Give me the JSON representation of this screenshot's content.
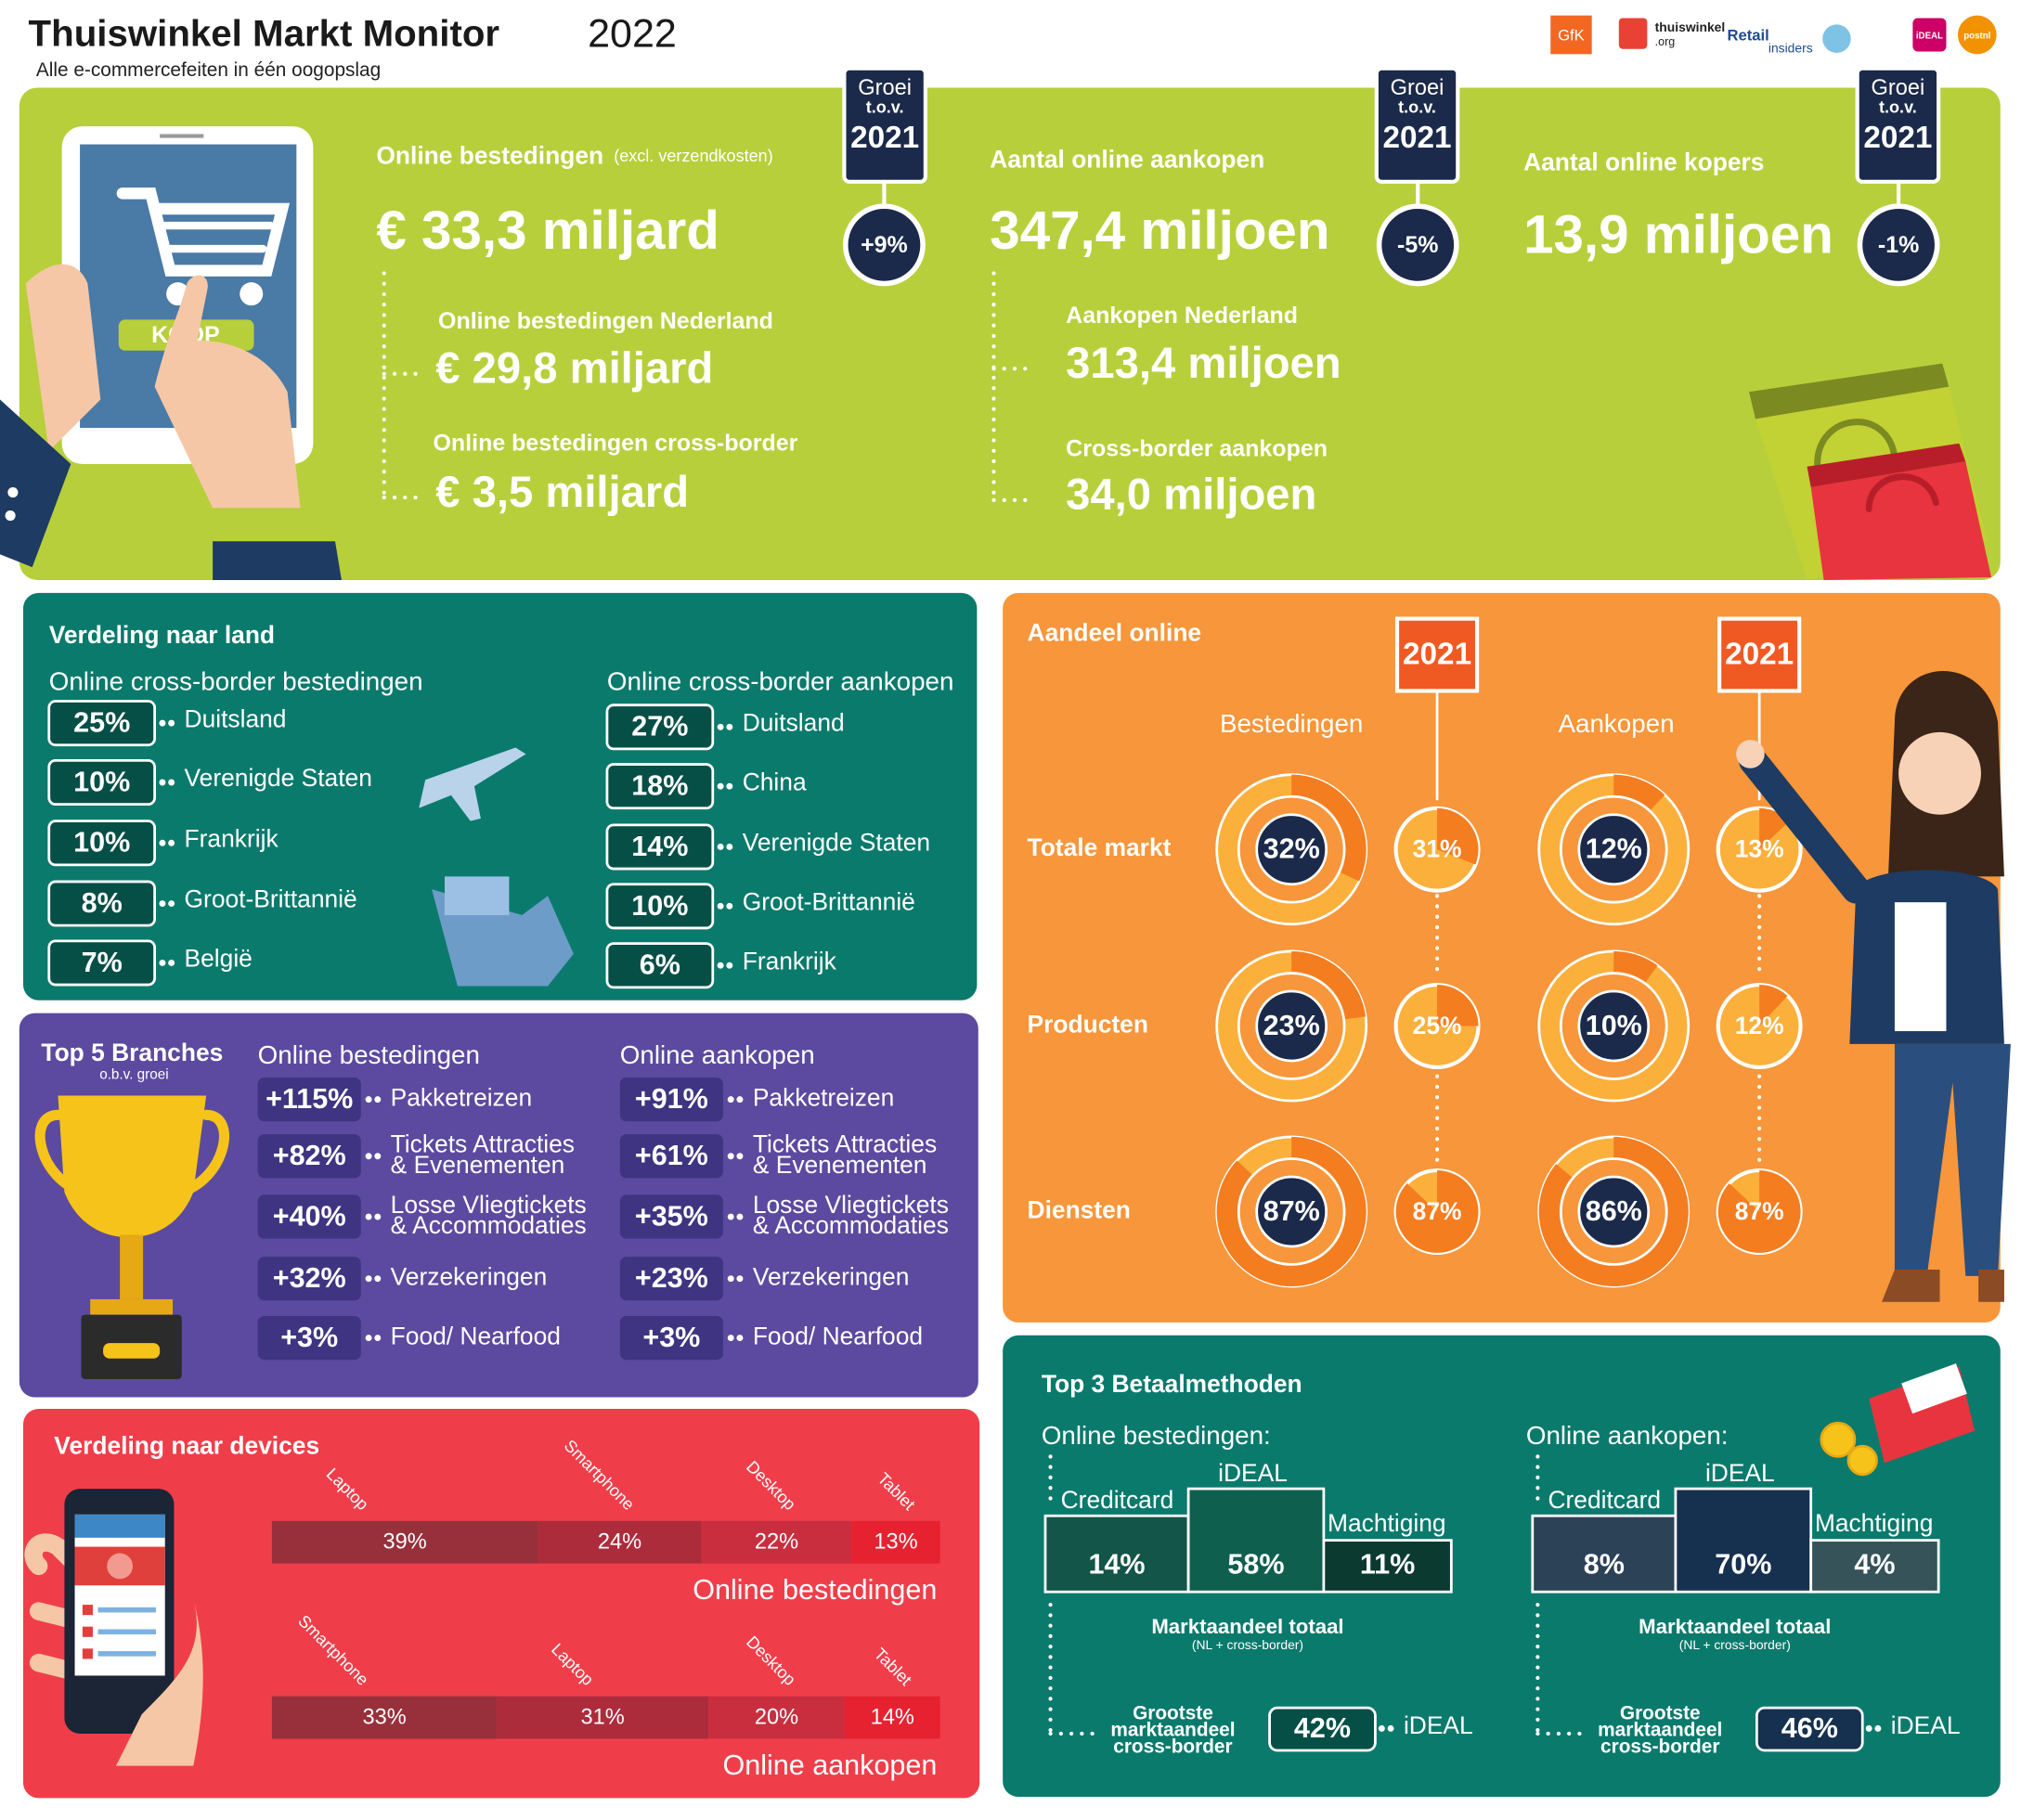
{
  "header": {
    "title": "Thuiswinkel Markt Monitor",
    "year": "2022",
    "subtitle": "Alle e-commercefeiten in één oogopslag",
    "logos": [
      "GfK",
      "thuiswinkel",
      ".org",
      "Retail",
      "insiders",
      "iDEAL",
      "postnl"
    ]
  },
  "overview": {
    "button": "KOOP",
    "growth_title": "Groei",
    "growth_sub": "t.o.v.",
    "growth_year": "2021",
    "kpis": [
      {
        "label": "Online bestedingen",
        "note": "(excl. verzendkosten)",
        "value": "€ 33,3 miljard",
        "growth": "+9%",
        "breakdown": [
          {
            "label": "Online bestedingen Nederland",
            "value": "€ 29,8 miljard"
          },
          {
            "label": "Online bestedingen cross-border",
            "value": "€ 3,5 miljard"
          }
        ]
      },
      {
        "label": "Aantal online aankopen",
        "value": "347,4 miljoen",
        "growth": "-5%",
        "breakdown": [
          {
            "label": "Aankopen Nederland",
            "value": "313,4 miljoen"
          },
          {
            "label": "Cross-border aankopen",
            "value": "34,0 miljoen"
          }
        ]
      },
      {
        "label": "Aantal online kopers",
        "value": "13,9 miljoen",
        "growth": "-1%"
      }
    ]
  },
  "countries": {
    "title": "Verdeling naar land",
    "columns": [
      {
        "heading": "Online cross-border bestedingen",
        "rows": [
          {
            "share": "25%",
            "country": "Duitsland"
          },
          {
            "share": "10%",
            "country": "Verenigde Staten"
          },
          {
            "share": "10%",
            "country": "Frankrijk"
          },
          {
            "share": "8%",
            "country": "Groot-Brittannië"
          },
          {
            "share": "7%",
            "country": "België"
          }
        ]
      },
      {
        "heading": "Online cross-border aankopen",
        "rows": [
          {
            "share": "27%",
            "country": "Duitsland"
          },
          {
            "share": "18%",
            "country": "China"
          },
          {
            "share": "14%",
            "country": "Verenigde Staten"
          },
          {
            "share": "10%",
            "country": "Groot-Brittannië"
          },
          {
            "share": "6%",
            "country": "Frankrijk"
          }
        ]
      }
    ]
  },
  "branches": {
    "title": "Top 5 Branches",
    "subtitle": "o.b.v. groei",
    "columns": [
      {
        "heading": "Online bestedingen",
        "rows": [
          {
            "growth": "+115%",
            "branch": [
              "Pakketreizen"
            ]
          },
          {
            "growth": "+82%",
            "branch": [
              "Tickets Attracties",
              "& Evenementen"
            ]
          },
          {
            "growth": "+40%",
            "branch": [
              "Losse Vliegtickets",
              "& Accommodaties"
            ]
          },
          {
            "growth": "+32%",
            "branch": [
              "Verzekeringen"
            ]
          },
          {
            "growth": "+3%",
            "branch": [
              "Food/ Nearfood"
            ]
          }
        ]
      },
      {
        "heading": "Online aankopen",
        "rows": [
          {
            "growth": "+91%",
            "branch": [
              "Pakketreizen"
            ]
          },
          {
            "growth": "+61%",
            "branch": [
              "Tickets Attracties",
              "& Evenementen"
            ]
          },
          {
            "growth": "+35%",
            "branch": [
              "Losse Vliegtickets",
              "& Accommodaties"
            ]
          },
          {
            "growth": "+23%",
            "branch": [
              "Verzekeringen"
            ]
          },
          {
            "growth": "+3%",
            "branch": [
              "Food/ Nearfood"
            ]
          }
        ]
      }
    ]
  },
  "devices": {
    "title": "Verdeling naar devices",
    "bars": [
      {
        "caption": "Online bestedingen",
        "segments": [
          {
            "device": "Laptop",
            "value": 39,
            "label": "39%"
          },
          {
            "device": "Smartphone",
            "value": 24,
            "label": "24%"
          },
          {
            "device": "Desktop",
            "value": 22,
            "label": "22%"
          },
          {
            "device": "Tablet",
            "value": 13,
            "label": "13%"
          }
        ]
      },
      {
        "caption": "Online aankopen",
        "segments": [
          {
            "device": "Smartphone",
            "value": 33,
            "label": "33%"
          },
          {
            "device": "Laptop",
            "value": 31,
            "label": "31%"
          },
          {
            "device": "Desktop",
            "value": 20,
            "label": "20%"
          },
          {
            "device": "Tablet",
            "value": 14,
            "label": "14%"
          }
        ]
      }
    ]
  },
  "share_online": {
    "title": "Aandeel online",
    "year": "2021",
    "columns": [
      "Bestedingen",
      "Aankopen"
    ],
    "rows": [
      {
        "label": "Totale markt",
        "cells": [
          {
            "value": 32,
            "label": "32%"
          },
          {
            "value": 31,
            "label": "31%"
          },
          {
            "value": 12,
            "label": "12%"
          },
          {
            "value": 13,
            "label": "13%"
          }
        ]
      },
      {
        "label": "Producten",
        "cells": [
          {
            "value": 23,
            "label": "23%"
          },
          {
            "value": 25,
            "label": "25%"
          },
          {
            "value": 10,
            "label": "10%"
          },
          {
            "value": 12,
            "label": "12%"
          }
        ]
      },
      {
        "label": "Diensten",
        "cells": [
          {
            "value": 87,
            "label": "87%"
          },
          {
            "value": 87,
            "label": "87%"
          },
          {
            "value": 86,
            "label": "86%"
          },
          {
            "value": 87,
            "label": "87%"
          }
        ]
      }
    ]
  },
  "payments": {
    "title": "Top 3 Betaalmethoden",
    "market_title": "Marktaandeel totaal",
    "market_note": "(NL + cross-border)",
    "largest_title": [
      "Grootste",
      "marktaandeel",
      "cross-border"
    ],
    "columns": [
      {
        "heading": "Online bestedingen:",
        "methods": [
          {
            "name": "Creditcard",
            "share": "14%"
          },
          {
            "name": "iDEAL",
            "share": "58%"
          },
          {
            "name": "Machtiging",
            "share": "11%"
          }
        ],
        "largest_share": "42%",
        "largest_method": "iDEAL"
      },
      {
        "heading": "Online aankopen:",
        "methods": [
          {
            "name": "Creditcard",
            "share": "8%"
          },
          {
            "name": "iDEAL",
            "share": "70%"
          },
          {
            "name": "Machtiging",
            "share": "4%"
          }
        ],
        "largest_share": "46%",
        "largest_method": "iDEAL"
      }
    ]
  }
}
